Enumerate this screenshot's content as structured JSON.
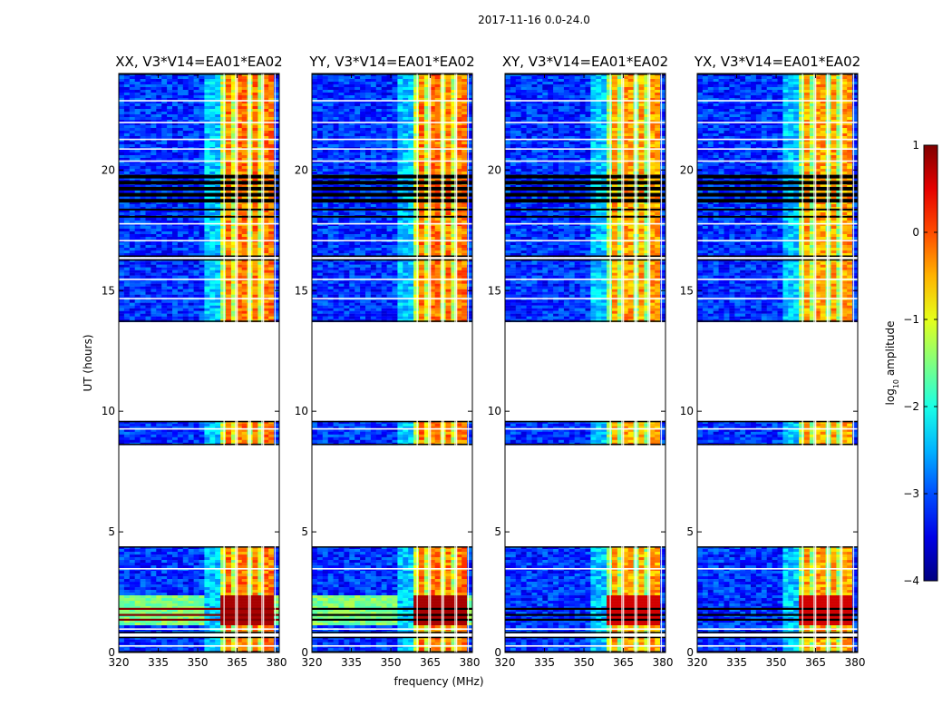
{
  "chart_data": {
    "type": "heatmap",
    "suptitle": "2017-11-16 0.0-24.0",
    "xlabel": "frequency (MHz)",
    "ylabel": "UT (hours)",
    "xlim": [
      320,
      381
    ],
    "ylim": [
      0,
      24
    ],
    "xticks": [
      320,
      335,
      350,
      365,
      380
    ],
    "yticks": [
      0,
      5,
      10,
      15,
      20
    ],
    "colorbar": {
      "label": "log10 amplitude",
      "label_base": "log",
      "label_sub": "10",
      "label_rest": " amplitude",
      "min": -4,
      "max": 1,
      "ticks": [
        "1",
        "0",
        "−1",
        "−2",
        "−3",
        "−4"
      ],
      "tick_values": [
        1,
        0,
        -1,
        -2,
        -3,
        -4
      ],
      "colormap": "jet"
    },
    "panels": [
      {
        "title": "XX, V3*V14=EA01*EA02",
        "pol": "XX"
      },
      {
        "title": "YY, V3*V14=EA01*EA02",
        "pol": "YY"
      },
      {
        "title": "XY, V3*V14=EA01*EA02",
        "pol": "XY"
      },
      {
        "title": "YX, V3*V14=EA01*EA02",
        "pol": "YX"
      }
    ],
    "data_segments_ut_hours": [
      [
        0,
        0.65
      ],
      [
        0.8,
        4.4
      ],
      [
        8.6,
        9.6
      ],
      [
        13.7,
        16.3
      ],
      [
        16.4,
        24.0
      ]
    ],
    "rfi_band_mhz": [
      358,
      378
    ],
    "rfi_channels_mhz": [
      362,
      367,
      372,
      377
    ]
  }
}
